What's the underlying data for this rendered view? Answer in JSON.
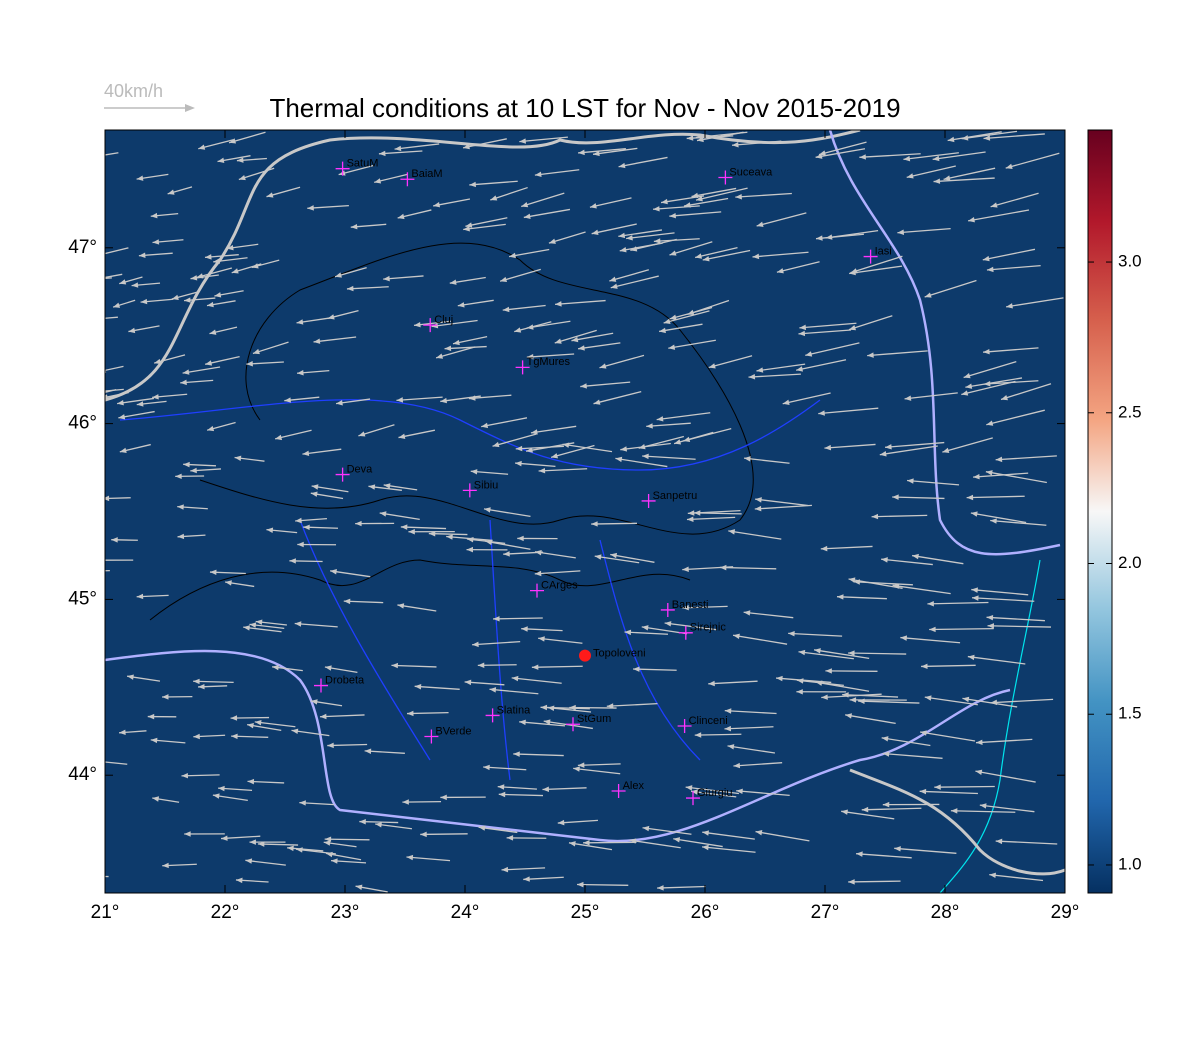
{
  "title": "Thermal conditions at 10 LST for Nov - Nov  2015-2019",
  "wind_scale_label": "40km/h",
  "map": {
    "xlim": [
      21,
      29
    ],
    "ylim": [
      43.33,
      47.67
    ],
    "xticks": [
      {
        "value": 21,
        "label": "21°"
      },
      {
        "value": 22,
        "label": "22°"
      },
      {
        "value": 23,
        "label": "23°"
      },
      {
        "value": 24,
        "label": "24°"
      },
      {
        "value": 25,
        "label": "25°"
      },
      {
        "value": 26,
        "label": "26°"
      },
      {
        "value": 27,
        "label": "27°"
      },
      {
        "value": 28,
        "label": "28°"
      },
      {
        "value": 29,
        "label": "29°"
      }
    ],
    "yticks": [
      {
        "value": 44,
        "label": "44°"
      },
      {
        "value": 45,
        "label": "45°"
      },
      {
        "value": 46,
        "label": "46°"
      },
      {
        "value": 47,
        "label": "47°"
      }
    ],
    "cities": [
      {
        "name": "SatuM",
        "lon": 22.98,
        "lat": 47.45
      },
      {
        "name": "BaiaM",
        "lon": 23.52,
        "lat": 47.39
      },
      {
        "name": "Suceava",
        "lon": 26.17,
        "lat": 47.4
      },
      {
        "name": "Iasi",
        "lon": 27.38,
        "lat": 46.95
      },
      {
        "name": "Cluj",
        "lon": 23.71,
        "lat": 46.56
      },
      {
        "name": "TgMures",
        "lon": 24.48,
        "lat": 46.32
      },
      {
        "name": "Deva",
        "lon": 22.98,
        "lat": 45.71
      },
      {
        "name": "Sibiu",
        "lon": 24.04,
        "lat": 45.62
      },
      {
        "name": "Sanpetru",
        "lon": 25.53,
        "lat": 45.56
      },
      {
        "name": "CArges",
        "lon": 24.6,
        "lat": 45.05
      },
      {
        "name": "Banesti",
        "lon": 25.69,
        "lat": 44.94
      },
      {
        "name": "Sirejnic",
        "lon": 25.84,
        "lat": 44.81
      },
      {
        "name": "Drobeta",
        "lon": 22.8,
        "lat": 44.51
      },
      {
        "name": "Slatina",
        "lon": 24.23,
        "lat": 44.34
      },
      {
        "name": "StGum",
        "lon": 24.9,
        "lat": 44.29
      },
      {
        "name": "Clinceni",
        "lon": 25.83,
        "lat": 44.28
      },
      {
        "name": "BVerde",
        "lon": 23.72,
        "lat": 44.22
      },
      {
        "name": "Alex",
        "lon": 25.28,
        "lat": 43.91
      },
      {
        "name": "Giurgiu",
        "lon": 25.9,
        "lat": 43.87
      }
    ],
    "site": {
      "name": "Topoloveni",
      "lon": 25.0,
      "lat": 44.68
    }
  },
  "colorbar": {
    "lim": [
      0.907,
      3.438
    ],
    "ticks": [
      {
        "value": 1,
        "label": "1.0"
      },
      {
        "value": 1.5,
        "label": "1.5"
      },
      {
        "value": 2,
        "label": "2.0"
      },
      {
        "value": 2.5,
        "label": "2.5"
      },
      {
        "value": 3,
        "label": "3.0"
      }
    ]
  }
}
